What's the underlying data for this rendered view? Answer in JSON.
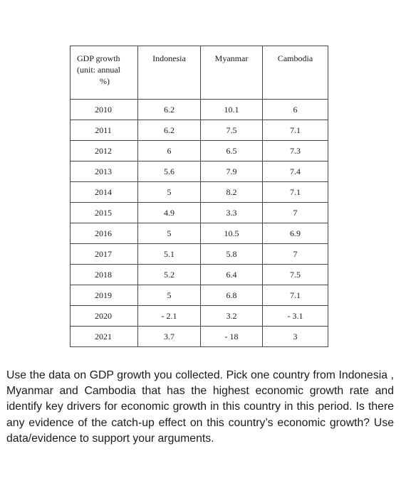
{
  "table": {
    "corner_label_line1": "GDP growth",
    "corner_label_line2": "(unit: annual",
    "corner_label_line3": "%)",
    "columns": [
      "Indonesia",
      "Myanmar",
      "Cambodia"
    ],
    "rows": [
      {
        "year": "2010",
        "indonesia": "6.2",
        "myanmar": "10.1",
        "cambodia": "6"
      },
      {
        "year": "2011",
        "indonesia": "6.2",
        "myanmar": "7.5",
        "cambodia": "7.1"
      },
      {
        "year": "2012",
        "indonesia": "6",
        "myanmar": "6.5",
        "cambodia": "7.3"
      },
      {
        "year": "2013",
        "indonesia": "5.6",
        "myanmar": "7.9",
        "cambodia": "7.4"
      },
      {
        "year": "2014",
        "indonesia": "5",
        "myanmar": "8.2",
        "cambodia": "7.1"
      },
      {
        "year": "2015",
        "indonesia": "4.9",
        "myanmar": "3.3",
        "cambodia": "7"
      },
      {
        "year": "2016",
        "indonesia": "5",
        "myanmar": "10.5",
        "cambodia": "6.9"
      },
      {
        "year": "2017",
        "indonesia": "5.1",
        "myanmar": "5.8",
        "cambodia": "7"
      },
      {
        "year": "2018",
        "indonesia": "5.2",
        "myanmar": "6.4",
        "cambodia": "7.5"
      },
      {
        "year": "2019",
        "indonesia": "5",
        "myanmar": "6.8",
        "cambodia": "7.1"
      },
      {
        "year": "2020",
        "indonesia": "- 2.1",
        "myanmar": "3.2",
        "cambodia": "- 3.1"
      },
      {
        "year": "2021",
        "indonesia": "3.7",
        "myanmar": "- 18",
        "cambodia": "3"
      }
    ]
  },
  "question": "Use the data on GDP growth you collected. Pick one country from Indonesia , Myanmar and Cambodia that has the highest economic growth rate and identify key drivers for economic growth in this country in this period. Is there any evidence of the catch-up effect on this country’s economic growth? Use data/evidence to support your arguments."
}
